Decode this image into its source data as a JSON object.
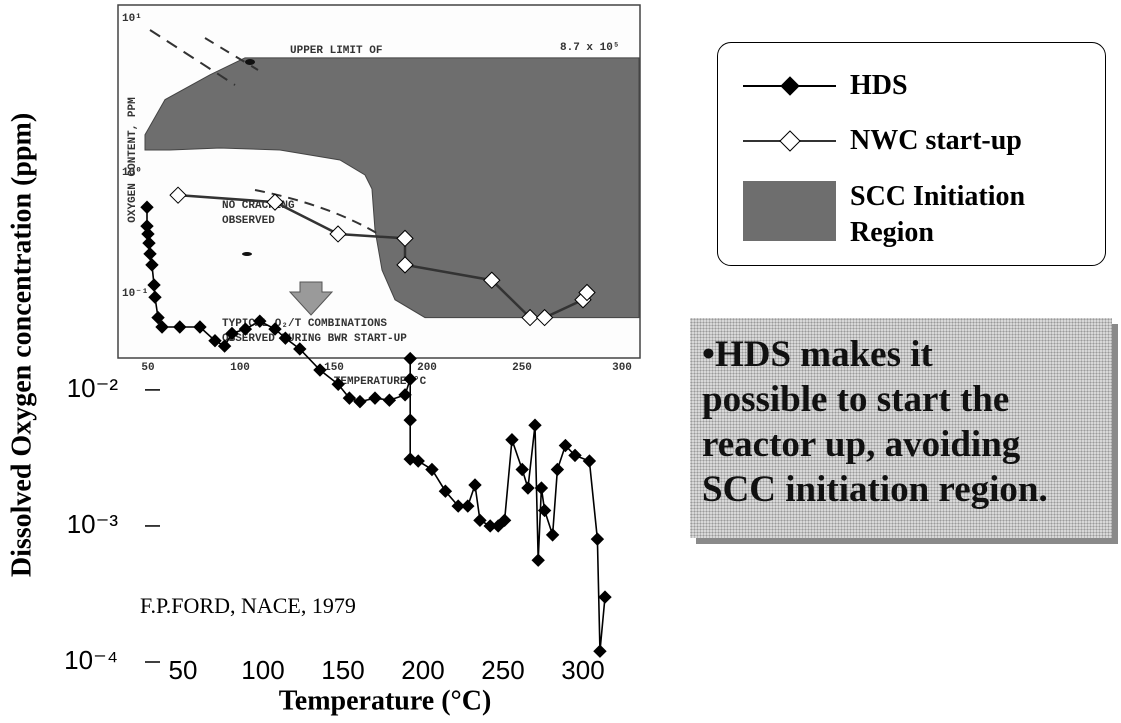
{
  "chart_data": {
    "type": "line",
    "xlabel": "Temperature (°C)",
    "ylabel": "Dissolved Oxygen concentration (ppm)",
    "annotation": "F.P.FORD, NACE, 1979",
    "log_y": true,
    "xlim": [
      25,
      335
    ],
    "xticks": [
      50,
      100,
      150,
      200,
      250,
      300
    ],
    "ylim": [
      0.0001,
      6.2
    ],
    "yticks": [
      {
        "value": 0.0001,
        "label": "10⁻⁴"
      },
      {
        "value": 0.001,
        "label": "10⁻³"
      },
      {
        "value": 0.01,
        "label": "10⁻²"
      }
    ],
    "legend": "outside-right",
    "region": {
      "name": "SCC Initiation Region",
      "color": "#6e6e6e",
      "x": [
        26.25,
        38.75,
        66.9,
        88.75,
        335,
        335,
        201.25,
        182.5,
        174.4,
        170,
        168.1,
        163.75,
        148.1,
        110.6,
        73.1,
        41.9,
        26.25
      ],
      "values": [
        0.75,
        1.36,
        2.07,
        2.76,
        2.76,
        0.034,
        0.034,
        0.046,
        0.076,
        0.15,
        0.3,
        0.38,
        0.49,
        0.58,
        0.6,
        0.58,
        0.58
      ]
    },
    "series": [
      {
        "name": "HDS",
        "color": "#000000",
        "marker_fill": "#000000",
        "x": [
          27.5,
          27.5,
          28.1,
          28.75,
          29.4,
          30.6,
          31.9,
          32.5,
          34.4,
          36.9,
          48,
          60.6,
          70,
          76,
          80.6,
          89,
          98,
          107.5,
          114,
          123,
          135.6,
          147,
          154,
          160.6,
          170,
          179,
          188.8,
          192,
          192,
          192,
          192,
          197,
          205.6,
          214,
          222,
          228,
          232.5,
          235.6,
          242,
          247,
          251,
          255.6,
          262,
          265.6,
          270,
          272,
          274,
          276,
          281,
          284,
          289,
          295,
          304,
          309,
          310.6,
          313.75
        ],
        "values": [
          0.22,
          0.16,
          0.14,
          0.12,
          0.1,
          0.083,
          0.059,
          0.048,
          0.034,
          0.029,
          0.029,
          0.029,
          0.023,
          0.021,
          0.026,
          0.028,
          0.032,
          0.028,
          0.024,
          0.02,
          0.014,
          0.011,
          0.0087,
          0.0082,
          0.0087,
          0.0084,
          0.0092,
          0.012,
          0.017,
          0.006,
          0.0031,
          0.003,
          0.0026,
          0.0018,
          0.0014,
          0.0014,
          0.002,
          0.0011,
          0.001,
          0.001,
          0.0011,
          0.0043,
          0.0026,
          0.0019,
          0.0055,
          0.00056,
          0.0019,
          0.0013,
          0.00086,
          0.0026,
          0.0039,
          0.0033,
          0.003,
          0.0008,
          0.00012,
          0.0003
        ]
      },
      {
        "name": "NWC start-up",
        "color": "#333333",
        "marker_fill": "#ffffff",
        "x": [
          46.9,
          107.5,
          146.9,
          188.75,
          188.75,
          243,
          266.9,
          276,
          300,
          302.5
        ],
        "values": [
          0.27,
          0.24,
          0.14,
          0.13,
          0.083,
          0.064,
          0.034,
          0.034,
          0.046,
          0.052
        ]
      }
    ],
    "inset": {
      "y_tick_labels": [
        "10¹",
        "10⁰",
        "10⁻¹"
      ],
      "x_tick_labels": [
        "50",
        "100",
        "150",
        "200",
        "250",
        "300"
      ],
      "xlabel": "TEMPERATURE °C",
      "ylabel": "OXYGEN CONTENT, PPM",
      "upper_limit": "UPPER LIMIT OF",
      "upper_limit_value": "8.7 x 10⁵",
      "no_cracking": [
        "NO CRACKING",
        "OBSERVED"
      ],
      "typical": [
        "TYPICAL O₂/T COMBINATIONS",
        "OBSERVED DURING BWR START-UP"
      ]
    }
  },
  "note": {
    "lines": [
      "•HDS makes it",
      "possible to start the",
      "reactor up, avoiding",
      "SCC initiation region."
    ]
  }
}
